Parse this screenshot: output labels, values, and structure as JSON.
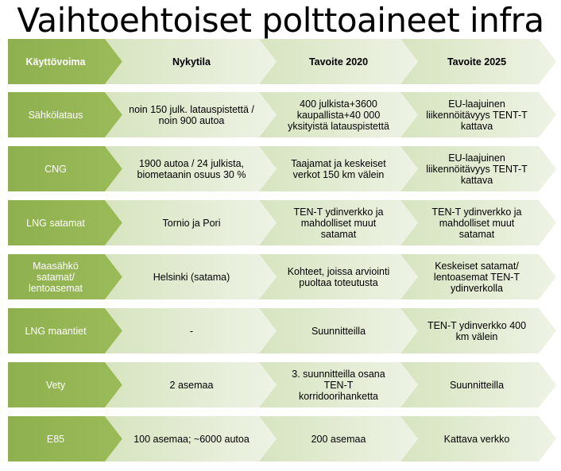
{
  "title": "Vaihtoehtoiset polttoaineet infra",
  "colors": {
    "head_fill": "#9bbb59",
    "head_fill_dark": "#8fb04f",
    "cell_fill_left": "#d7e4c0",
    "cell_fill_right": "#eef3e5",
    "head_text": "#ffffff",
    "cell_text": "#000000"
  },
  "header": {
    "label": "Käyttövoima",
    "columns": [
      "Nykytila",
      "Tavoite 2020",
      "Tavoite 2025"
    ]
  },
  "rows": [
    {
      "label": "Sähkölataus",
      "cells": [
        "noin 150 julk. latauspistettä /\nnoin 900 autoa",
        "400 julkista+3600\nkaupallista+40 000\nyksityistä latauspistettä",
        "EU-laajuinen\nliikennöitävyys TENT-T\nkattava"
      ]
    },
    {
      "label": "CNG",
      "cells": [
        "1900 autoa / 24 julkista,\nbiometaanin osuus 30 %",
        "Taajamat ja keskeiset\nverkot 150 km välein",
        "EU-laajuinen\nliikennöitävyys TENT-T\nkattava"
      ]
    },
    {
      "label": "LNG satamat",
      "cells": [
        "Tornio ja Pori",
        "TEN-T ydinverkko ja\nmahdolliset muut\nsatamat",
        "TEN-T ydinverkko ja\nmahdolliset muut\nsatamat"
      ]
    },
    {
      "label": "Maasähkö\nsatamat/\nlentoasemat",
      "cells": [
        "Helsinki (satama)",
        "Kohteet, joissa arviointi\npuoltaa toteutusta",
        "Keskeiset satamat/\nlentoasemat TEN-T\nydinverkolla"
      ]
    },
    {
      "label": "LNG maantiet",
      "cells": [
        "-",
        "Suunnitteilla",
        "TEN-T ydinverkko  400\nkm välein"
      ]
    },
    {
      "label": "Vety",
      "cells": [
        "2 asemaa",
        "3. suunnitteilla osana\nTEN-T\nkorridoorihanketta",
        "Suunnitteilla"
      ]
    },
    {
      "label": "E85",
      "cells": [
        "100 asemaa; ~6000 autoa",
        "200 asemaa",
        "Kattava verkko"
      ]
    }
  ]
}
